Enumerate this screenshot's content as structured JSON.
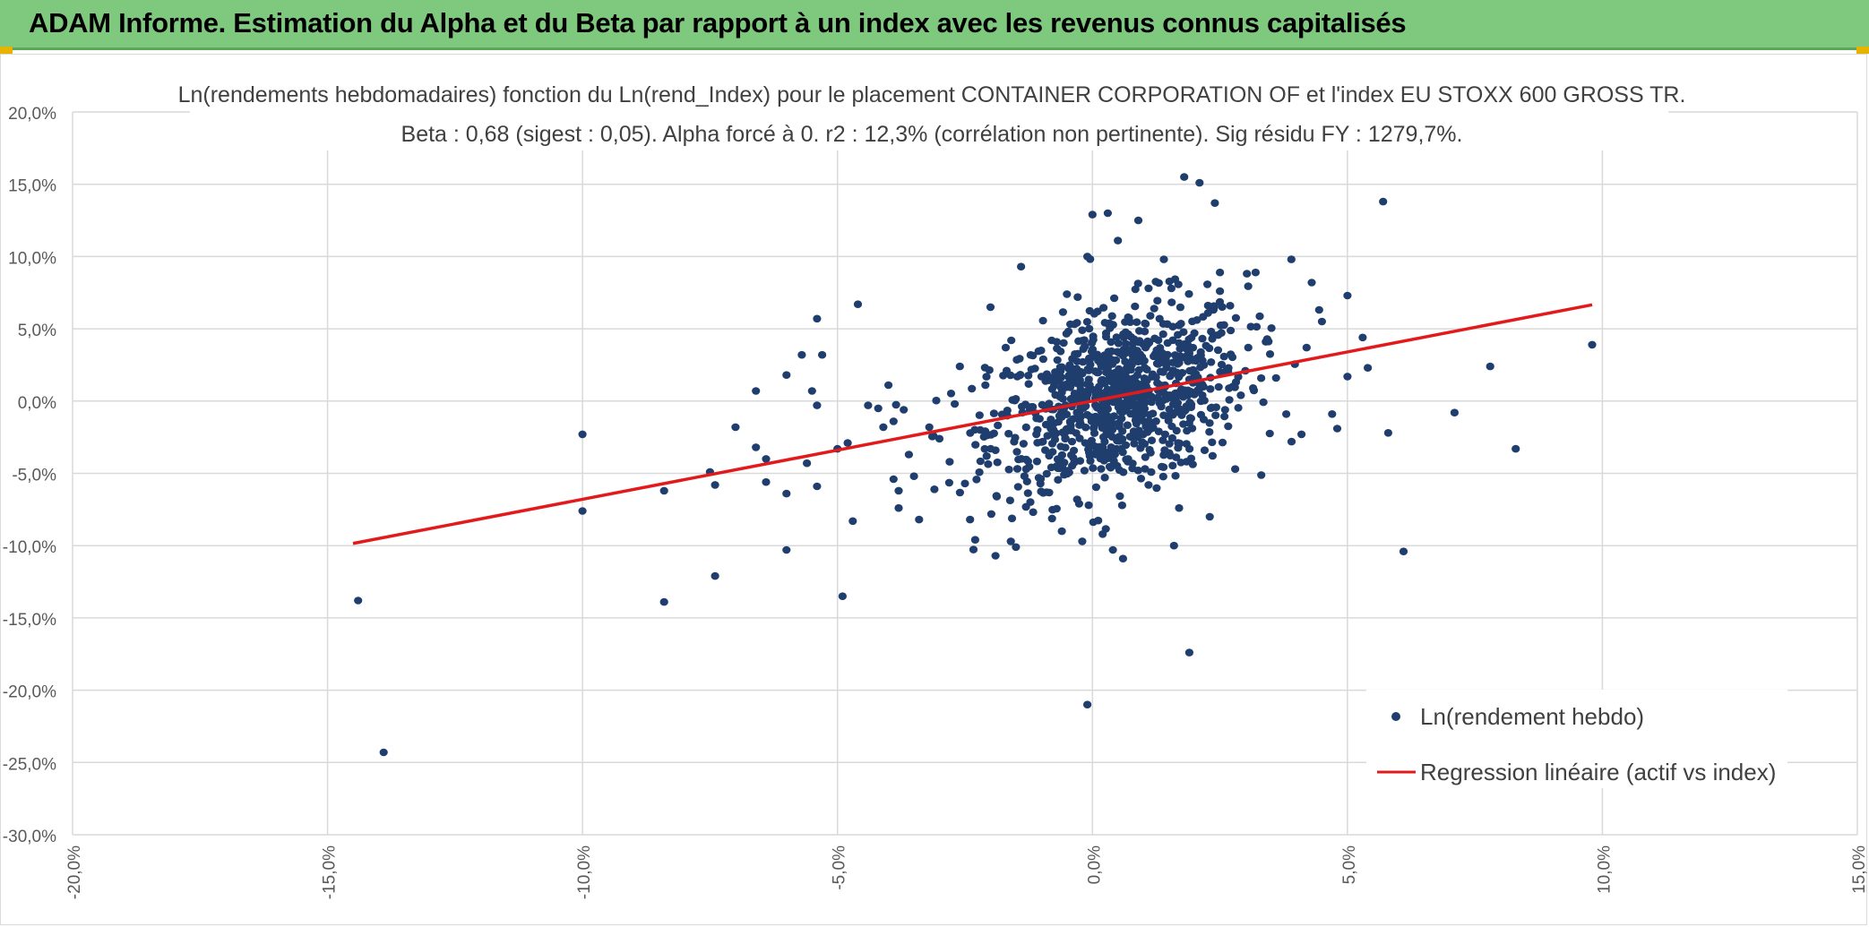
{
  "header": {
    "title": "ADAM Informe. Estimation du Alpha et du Beta par rapport à un index avec les revenus connus capitalisés"
  },
  "colors": {
    "banner": "#7fc97f",
    "points": "#1f3e6e",
    "regression": "#e31a1c",
    "grid": "#d9d9d9"
  },
  "chart_data": {
    "type": "scatter",
    "title": "Ln(rendements hebdomadaires) fonction du Ln(rend_Index) pour le placement CONTAINER CORPORATION OF  et l'index EU STOXX 600 GROSS TR.",
    "subtitle": "Beta : 0,68 (sigest : 0,05). Alpha forcé à 0. r2 : 12,3% (corrélation non pertinente). Sig résidu FY : 1279,7%.",
    "xlim": [
      -20,
      15
    ],
    "ylim": [
      -30,
      20
    ],
    "x_ticks": [
      "-20,0%",
      "-15,0%",
      "-10,0%",
      "-5,0%",
      "0,0%",
      "5,0%",
      "10,0%",
      "15,0%"
    ],
    "y_ticks": [
      "20,0%",
      "15,0%",
      "10,0%",
      "5,0%",
      "0,0%",
      "-5,0%",
      "-10,0%",
      "-15,0%",
      "-20,0%",
      "-25,0%",
      "-30,0%"
    ],
    "grid": true,
    "legend_position": "bottom-right",
    "series": [
      {
        "name": "Ln(rendement hebdo)",
        "type": "scatter",
        "points": [
          [
            -14.4,
            -13.8
          ],
          [
            -13.9,
            -24.3
          ],
          [
            -10.0,
            -2.3
          ],
          [
            -10.0,
            -7.6
          ],
          [
            -8.4,
            -6.2
          ],
          [
            -8.4,
            -13.9
          ],
          [
            -7.5,
            -4.9
          ],
          [
            -7.4,
            -5.8
          ],
          [
            -7.4,
            -12.1
          ],
          [
            -7.0,
            -1.8
          ],
          [
            -6.6,
            -3.2
          ],
          [
            -6.6,
            0.7
          ],
          [
            -6.4,
            -4.0
          ],
          [
            -6.4,
            -5.6
          ],
          [
            -6.0,
            1.8
          ],
          [
            -6.0,
            -6.4
          ],
          [
            -6.0,
            -10.3
          ],
          [
            -5.7,
            3.2
          ],
          [
            -5.6,
            -4.3
          ],
          [
            -5.5,
            0.7
          ],
          [
            -5.4,
            5.7
          ],
          [
            -5.4,
            -0.3
          ],
          [
            -5.4,
            -5.9
          ],
          [
            -5.3,
            3.2
          ],
          [
            -5.0,
            -3.3
          ],
          [
            -4.9,
            -13.5
          ],
          [
            -4.8,
            -2.9
          ],
          [
            -4.7,
            -8.3
          ],
          [
            -4.6,
            6.7
          ],
          [
            -4.4,
            -0.3
          ],
          [
            -4.2,
            -0.5
          ],
          [
            -4.1,
            -1.8
          ],
          [
            -4.0,
            1.1
          ],
          [
            -3.9,
            -1.4
          ],
          [
            -3.9,
            -5.4
          ],
          [
            -3.8,
            -6.2
          ],
          [
            -3.8,
            -7.4
          ],
          [
            -3.7,
            -0.6
          ],
          [
            -3.6,
            -3.7
          ],
          [
            -3.5,
            -5.2
          ],
          [
            -3.4,
            -8.2
          ],
          [
            -3.2,
            -1.8
          ],
          [
            -3.1,
            -6.1
          ],
          [
            -3.0,
            -2.6
          ],
          [
            -2.8,
            -4.2
          ],
          [
            -2.7,
            -0.2
          ],
          [
            -2.6,
            2.4
          ],
          [
            -2.5,
            -5.7
          ],
          [
            -2.4,
            -8.2
          ],
          [
            -2.3,
            -9.6
          ],
          [
            -2.2,
            -2.0
          ],
          [
            -2.1,
            1.1
          ],
          [
            -2.0,
            6.5
          ],
          [
            -1.9,
            -3.4
          ],
          [
            -1.9,
            -10.7
          ],
          [
            -1.7,
            3.7
          ],
          [
            -1.6,
            -9.7
          ],
          [
            -1.5,
            -10.1
          ],
          [
            -1.4,
            9.3
          ],
          [
            -1.3,
            -4.7
          ],
          [
            -1.2,
            -0.4
          ],
          [
            -1.1,
            -2.3
          ],
          [
            -1.0,
            1.7
          ],
          [
            -0.9,
            -6.3
          ],
          [
            -0.8,
            4.2
          ],
          [
            -0.7,
            -4.5
          ],
          [
            -0.6,
            -9.0
          ],
          [
            -0.5,
            7.4
          ],
          [
            -0.4,
            -2.8
          ],
          [
            -0.3,
            1.3
          ],
          [
            -0.3,
            -6.8
          ],
          [
            -0.2,
            4.9
          ],
          [
            -0.2,
            -9.7
          ],
          [
            -0.1,
            10.0
          ],
          [
            -0.1,
            -21.0
          ],
          [
            0.0,
            12.9
          ],
          [
            0.0,
            -1.2
          ],
          [
            0.1,
            6.2
          ],
          [
            0.2,
            -3.2
          ],
          [
            0.2,
            -9.2
          ],
          [
            0.3,
            13.0
          ],
          [
            0.3,
            2.3
          ],
          [
            0.4,
            -10.3
          ],
          [
            0.5,
            0.3
          ],
          [
            0.5,
            11.1
          ],
          [
            0.6,
            -10.9
          ],
          [
            0.7,
            5.8
          ],
          [
            0.7,
            -4.0
          ],
          [
            0.8,
            1.2
          ],
          [
            0.9,
            12.5
          ],
          [
            1.0,
            -0.9
          ],
          [
            1.1,
            7.8
          ],
          [
            1.1,
            -5.8
          ],
          [
            1.2,
            3.1
          ],
          [
            1.3,
            -2.1
          ],
          [
            1.4,
            9.8
          ],
          [
            1.5,
            0.4
          ],
          [
            1.6,
            -10.0
          ],
          [
            1.7,
            -7.4
          ],
          [
            1.8,
            15.5
          ],
          [
            1.9,
            -17.4
          ],
          [
            1.9,
            1.5
          ],
          [
            2.0,
            4.7
          ],
          [
            2.1,
            15.1
          ],
          [
            2.2,
            -3.4
          ],
          [
            2.3,
            -8.0
          ],
          [
            2.4,
            13.7
          ],
          [
            2.5,
            8.9
          ],
          [
            2.6,
            -0.6
          ],
          [
            2.7,
            6.6
          ],
          [
            2.8,
            -4.7
          ],
          [
            3.0,
            2.1
          ],
          [
            3.2,
            8.9
          ],
          [
            3.4,
            4.1
          ],
          [
            3.6,
            1.6
          ],
          [
            3.8,
            -0.9
          ],
          [
            3.9,
            9.8
          ],
          [
            4.1,
            -2.3
          ],
          [
            4.2,
            3.7
          ],
          [
            4.3,
            8.2
          ],
          [
            4.5,
            5.5
          ],
          [
            4.7,
            -0.9
          ],
          [
            4.8,
            -1.9
          ],
          [
            5.0,
            7.3
          ],
          [
            5.0,
            1.7
          ],
          [
            5.3,
            4.4
          ],
          [
            5.4,
            2.3
          ],
          [
            5.7,
            13.8
          ],
          [
            5.8,
            -2.2
          ],
          [
            6.1,
            -10.4
          ],
          [
            7.1,
            -0.8
          ],
          [
            7.8,
            2.4
          ],
          [
            8.3,
            -3.3
          ],
          [
            9.8,
            3.9
          ]
        ],
        "cloud": {
          "center": [
            0.5,
            0.2
          ],
          "sd": [
            1.25,
            3.3
          ],
          "correlation": 0.35,
          "count": 900
        }
      },
      {
        "name": "Regression linéaire (actif vs index)",
        "type": "line",
        "points": [
          [
            -14.5,
            -9.85
          ],
          [
            9.8,
            6.66
          ]
        ]
      }
    ]
  }
}
